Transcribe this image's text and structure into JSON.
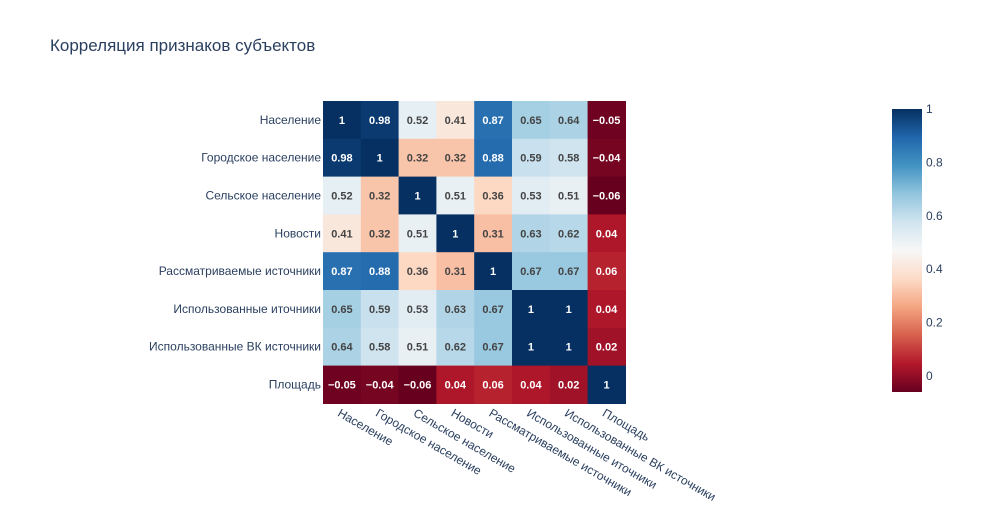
{
  "chart_data": {
    "type": "heatmap",
    "title": "Корреляция признаков субъектов",
    "rows": [
      "Население",
      "Городское население",
      "Сельское население",
      "Новости",
      "Рассматриваемые источники",
      "Использованные иточники",
      "Использованные ВК источники",
      "Площадь"
    ],
    "columns": [
      "Население",
      "Городское население",
      "Сельское население",
      "Новости",
      "Рассматриваемые источники",
      "Использованные иточники",
      "Использованные ВК источники",
      "Площадь"
    ],
    "values": [
      [
        1,
        0.98,
        0.52,
        0.41,
        0.87,
        0.65,
        0.64,
        -0.05
      ],
      [
        0.98,
        1,
        0.32,
        0.32,
        0.88,
        0.59,
        0.58,
        -0.04
      ],
      [
        0.52,
        0.32,
        1,
        0.51,
        0.36,
        0.53,
        0.51,
        -0.06
      ],
      [
        0.41,
        0.32,
        0.51,
        1,
        0.31,
        0.63,
        0.62,
        0.04
      ],
      [
        0.87,
        0.88,
        0.36,
        0.31,
        1,
        0.67,
        0.67,
        0.06
      ],
      [
        0.65,
        0.59,
        0.53,
        0.63,
        0.67,
        1,
        1,
        0.04
      ],
      [
        0.64,
        0.58,
        0.51,
        0.62,
        0.67,
        1,
        1,
        0.02
      ],
      [
        -0.05,
        -0.04,
        -0.06,
        0.04,
        0.06,
        0.04,
        0.02,
        1
      ]
    ],
    "cell_labels": [
      [
        "1",
        "0.98",
        "0.52",
        "0.41",
        "0.87",
        "0.65",
        "0.64",
        "−0.05"
      ],
      [
        "0.98",
        "1",
        "0.32",
        "0.32",
        "0.88",
        "0.59",
        "0.58",
        "−0.04"
      ],
      [
        "0.52",
        "0.32",
        "1",
        "0.51",
        "0.36",
        "0.53",
        "0.51",
        "−0.06"
      ],
      [
        "0.41",
        "0.32",
        "0.51",
        "1",
        "0.31",
        "0.63",
        "0.62",
        "0.04"
      ],
      [
        "0.87",
        "0.88",
        "0.36",
        "0.31",
        "1",
        "0.67",
        "0.67",
        "0.06"
      ],
      [
        "0.65",
        "0.59",
        "0.53",
        "0.63",
        "0.67",
        "1",
        "1",
        "0.04"
      ],
      [
        "0.64",
        "0.58",
        "0.51",
        "0.62",
        "0.67",
        "1",
        "1",
        "0.02"
      ],
      [
        "−0.05",
        "−0.04",
        "−0.06",
        "0.04",
        "0.06",
        "0.04",
        "0.02",
        "1"
      ]
    ],
    "colorscale": "RdBu",
    "zrange": [
      -0.06,
      1
    ],
    "colorbar": {
      "ticks": [
        0,
        0.2,
        0.4,
        0.6,
        0.8,
        1
      ],
      "tick_labels": [
        "0",
        "0.2",
        "0.4",
        "0.6",
        "0.8",
        "1"
      ]
    },
    "colors": {
      "title": "#2a3f5f",
      "text": "#2a3f5f",
      "cell_text_dark": "#444444",
      "cell_text_light": "#ffffff",
      "background": "#ffffff",
      "colorscale_stops": [
        [
          0.0,
          "#67001f"
        ],
        [
          0.1,
          "#b2182b"
        ],
        [
          0.2,
          "#d6604d"
        ],
        [
          0.3,
          "#f4a582"
        ],
        [
          0.4,
          "#fddbc7"
        ],
        [
          0.5,
          "#f7f7f7"
        ],
        [
          0.6,
          "#d1e5f0"
        ],
        [
          0.7,
          "#92c5de"
        ],
        [
          0.8,
          "#4393c3"
        ],
        [
          0.9,
          "#2166ac"
        ],
        [
          1.0,
          "#053061"
        ]
      ]
    }
  }
}
